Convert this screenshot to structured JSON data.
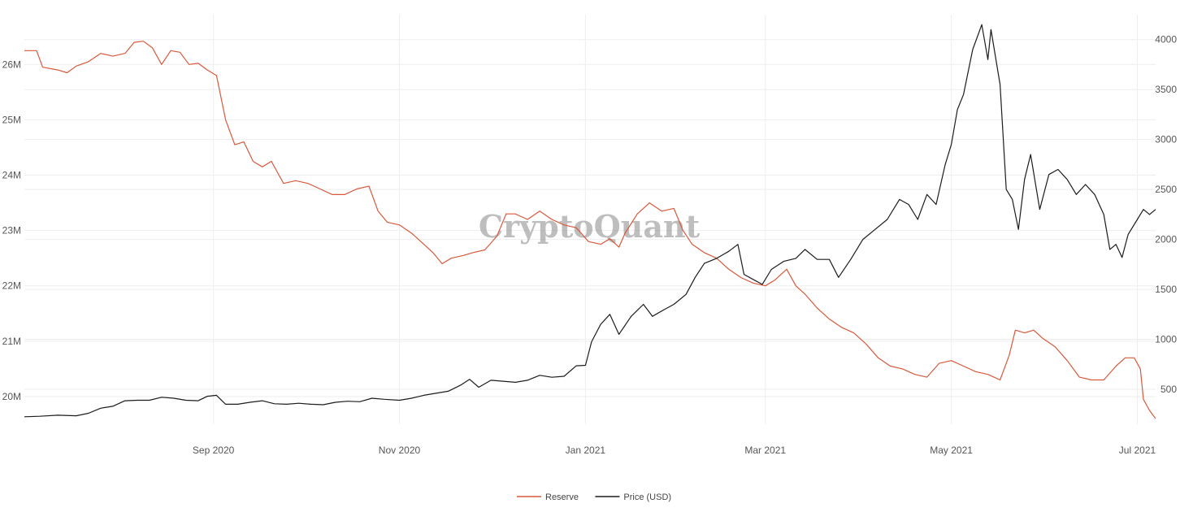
{
  "watermark": "CryptoQuant",
  "colors": {
    "reserve": "#d8593c",
    "price": "#1c1c1c",
    "grid": "#eeeeee",
    "text": "#555555"
  },
  "chart_data": {
    "type": "line",
    "x_range": [
      "2020-07-01",
      "2021-07-07"
    ],
    "x_ticks": [
      {
        "date": "2020-09-01",
        "label": "Sep 2020"
      },
      {
        "date": "2020-11-01",
        "label": "Nov 2020"
      },
      {
        "date": "2021-01-01",
        "label": "Jan 2021"
      },
      {
        "date": "2021-03-01",
        "label": "Mar 2021"
      },
      {
        "date": "2021-05-01",
        "label": "May 2021"
      },
      {
        "date": "2021-07-01",
        "label": "Jul 2021"
      }
    ],
    "y_left": {
      "range": [
        19500000,
        26900000
      ],
      "ticks": [
        {
          "value": 20000000,
          "label": "20M"
        },
        {
          "value": 21000000,
          "label": "21M"
        },
        {
          "value": 22000000,
          "label": "22M"
        },
        {
          "value": 23000000,
          "label": "23M"
        },
        {
          "value": 24000000,
          "label": "24M"
        },
        {
          "value": 25000000,
          "label": "25M"
        },
        {
          "value": 26000000,
          "label": "26M"
        }
      ]
    },
    "y_right": {
      "range": [
        150,
        4250
      ],
      "ticks": [
        {
          "value": 500,
          "label": "500"
        },
        {
          "value": 1000,
          "label": "1000"
        },
        {
          "value": 1500,
          "label": "1500"
        },
        {
          "value": 2000,
          "label": "2000"
        },
        {
          "value": 2500,
          "label": "2500"
        },
        {
          "value": 3000,
          "label": "3000"
        },
        {
          "value": 3500,
          "label": "3500"
        },
        {
          "value": 4000,
          "label": "4000"
        }
      ]
    },
    "legend_position": "bottom-center",
    "series": [
      {
        "name": "Reserve",
        "axis": "left",
        "points": [
          [
            "2020-07-01",
            26.25
          ],
          [
            "2020-07-05",
            26.25
          ],
          [
            "2020-07-07",
            25.95
          ],
          [
            "2020-07-12",
            25.9
          ],
          [
            "2020-07-15",
            25.85
          ],
          [
            "2020-07-18",
            25.97
          ],
          [
            "2020-07-22",
            26.05
          ],
          [
            "2020-07-26",
            26.2
          ],
          [
            "2020-07-30",
            26.15
          ],
          [
            "2020-08-03",
            26.2
          ],
          [
            "2020-08-06",
            26.4
          ],
          [
            "2020-08-09",
            26.42
          ],
          [
            "2020-08-12",
            26.3
          ],
          [
            "2020-08-15",
            26.0
          ],
          [
            "2020-08-18",
            26.25
          ],
          [
            "2020-08-21",
            26.22
          ],
          [
            "2020-08-24",
            26.0
          ],
          [
            "2020-08-27",
            26.02
          ],
          [
            "2020-08-30",
            25.9
          ],
          [
            "2020-09-02",
            25.8
          ],
          [
            "2020-09-05",
            25.0
          ],
          [
            "2020-09-08",
            24.55
          ],
          [
            "2020-09-11",
            24.6
          ],
          [
            "2020-09-14",
            24.25
          ],
          [
            "2020-09-17",
            24.15
          ],
          [
            "2020-09-20",
            24.25
          ],
          [
            "2020-09-24",
            23.85
          ],
          [
            "2020-09-28",
            23.9
          ],
          [
            "2020-10-02",
            23.85
          ],
          [
            "2020-10-06",
            23.75
          ],
          [
            "2020-10-10",
            23.65
          ],
          [
            "2020-10-14",
            23.65
          ],
          [
            "2020-10-18",
            23.75
          ],
          [
            "2020-10-22",
            23.8
          ],
          [
            "2020-10-25",
            23.35
          ],
          [
            "2020-10-28",
            23.15
          ],
          [
            "2020-11-01",
            23.1
          ],
          [
            "2020-11-05",
            22.95
          ],
          [
            "2020-11-08",
            22.8
          ],
          [
            "2020-11-12",
            22.6
          ],
          [
            "2020-11-15",
            22.4
          ],
          [
            "2020-11-18",
            22.5
          ],
          [
            "2020-11-22",
            22.55
          ],
          [
            "2020-11-25",
            22.6
          ],
          [
            "2020-11-29",
            22.65
          ],
          [
            "2020-12-03",
            22.9
          ],
          [
            "2020-12-06",
            23.3
          ],
          [
            "2020-12-09",
            23.3
          ],
          [
            "2020-12-13",
            23.2
          ],
          [
            "2020-12-17",
            23.35
          ],
          [
            "2020-12-21",
            23.2
          ],
          [
            "2020-12-25",
            23.1
          ],
          [
            "2020-12-29",
            23.05
          ],
          [
            "2021-01-02",
            22.8
          ],
          [
            "2021-01-06",
            22.75
          ],
          [
            "2021-01-09",
            22.85
          ],
          [
            "2021-01-12",
            22.7
          ],
          [
            "2021-01-14",
            22.95
          ],
          [
            "2021-01-18",
            23.3
          ],
          [
            "2021-01-22",
            23.5
          ],
          [
            "2021-01-26",
            23.35
          ],
          [
            "2021-01-30",
            23.4
          ],
          [
            "2021-02-02",
            23.0
          ],
          [
            "2021-02-05",
            22.75
          ],
          [
            "2021-02-09",
            22.6
          ],
          [
            "2021-02-13",
            22.5
          ],
          [
            "2021-02-17",
            22.3
          ],
          [
            "2021-02-21",
            22.15
          ],
          [
            "2021-02-25",
            22.05
          ],
          [
            "2021-03-01",
            22.0
          ],
          [
            "2021-03-04",
            22.1
          ],
          [
            "2021-03-08",
            22.3
          ],
          [
            "2021-03-11",
            22.0
          ],
          [
            "2021-03-14",
            21.85
          ],
          [
            "2021-03-18",
            21.6
          ],
          [
            "2021-03-22",
            21.4
          ],
          [
            "2021-03-26",
            21.25
          ],
          [
            "2021-03-30",
            21.15
          ],
          [
            "2021-04-03",
            20.95
          ],
          [
            "2021-04-07",
            20.7
          ],
          [
            "2021-04-11",
            20.55
          ],
          [
            "2021-04-15",
            20.5
          ],
          [
            "2021-04-19",
            20.4
          ],
          [
            "2021-04-23",
            20.35
          ],
          [
            "2021-04-27",
            20.6
          ],
          [
            "2021-05-01",
            20.65
          ],
          [
            "2021-05-05",
            20.55
          ],
          [
            "2021-05-09",
            20.45
          ],
          [
            "2021-05-13",
            20.4
          ],
          [
            "2021-05-15",
            20.35
          ],
          [
            "2021-05-17",
            20.3
          ],
          [
            "2021-05-20",
            20.75
          ],
          [
            "2021-05-22",
            21.2
          ],
          [
            "2021-05-25",
            21.15
          ],
          [
            "2021-05-28",
            21.2
          ],
          [
            "2021-05-31",
            21.05
          ],
          [
            "2021-06-04",
            20.9
          ],
          [
            "2021-06-08",
            20.65
          ],
          [
            "2021-06-12",
            20.35
          ],
          [
            "2021-06-16",
            20.3
          ],
          [
            "2021-06-20",
            20.3
          ],
          [
            "2021-06-24",
            20.55
          ],
          [
            "2021-06-27",
            20.7
          ],
          [
            "2021-06-30",
            20.7
          ],
          [
            "2021-07-02",
            20.5
          ],
          [
            "2021-07-03",
            19.95
          ],
          [
            "2021-07-05",
            19.75
          ],
          [
            "2021-07-07",
            19.6
          ]
        ]
      },
      {
        "name": "Price (USD)",
        "axis": "right",
        "points": [
          [
            "2020-07-01",
            225
          ],
          [
            "2020-07-06",
            230
          ],
          [
            "2020-07-12",
            240
          ],
          [
            "2020-07-18",
            235
          ],
          [
            "2020-07-22",
            260
          ],
          [
            "2020-07-26",
            310
          ],
          [
            "2020-07-30",
            330
          ],
          [
            "2020-08-03",
            385
          ],
          [
            "2020-08-07",
            390
          ],
          [
            "2020-08-11",
            390
          ],
          [
            "2020-08-15",
            420
          ],
          [
            "2020-08-19",
            410
          ],
          [
            "2020-08-23",
            390
          ],
          [
            "2020-08-27",
            385
          ],
          [
            "2020-08-30",
            430
          ],
          [
            "2020-09-02",
            440
          ],
          [
            "2020-09-05",
            350
          ],
          [
            "2020-09-09",
            350
          ],
          [
            "2020-09-13",
            370
          ],
          [
            "2020-09-17",
            385
          ],
          [
            "2020-09-21",
            355
          ],
          [
            "2020-09-25",
            350
          ],
          [
            "2020-09-29",
            360
          ],
          [
            "2020-10-03",
            350
          ],
          [
            "2020-10-07",
            345
          ],
          [
            "2020-10-11",
            370
          ],
          [
            "2020-10-15",
            380
          ],
          [
            "2020-10-19",
            375
          ],
          [
            "2020-10-23",
            410
          ],
          [
            "2020-10-27",
            400
          ],
          [
            "2020-11-01",
            390
          ],
          [
            "2020-11-05",
            410
          ],
          [
            "2020-11-09",
            440
          ],
          [
            "2020-11-13",
            460
          ],
          [
            "2020-11-17",
            480
          ],
          [
            "2020-11-21",
            540
          ],
          [
            "2020-11-24",
            600
          ],
          [
            "2020-11-27",
            520
          ],
          [
            "2020-12-01",
            590
          ],
          [
            "2020-12-05",
            580
          ],
          [
            "2020-12-09",
            570
          ],
          [
            "2020-12-13",
            590
          ],
          [
            "2020-12-17",
            640
          ],
          [
            "2020-12-21",
            620
          ],
          [
            "2020-12-25",
            630
          ],
          [
            "2020-12-29",
            735
          ],
          [
            "2021-01-01",
            740
          ],
          [
            "2021-01-03",
            975
          ],
          [
            "2021-01-06",
            1150
          ],
          [
            "2021-01-09",
            1250
          ],
          [
            "2021-01-12",
            1050
          ],
          [
            "2021-01-16",
            1230
          ],
          [
            "2021-01-20",
            1350
          ],
          [
            "2021-01-23",
            1230
          ],
          [
            "2021-01-27",
            1300
          ],
          [
            "2021-01-30",
            1350
          ],
          [
            "2021-02-03",
            1450
          ],
          [
            "2021-02-06",
            1620
          ],
          [
            "2021-02-09",
            1760
          ],
          [
            "2021-02-13",
            1810
          ],
          [
            "2021-02-17",
            1880
          ],
          [
            "2021-02-20",
            1950
          ],
          [
            "2021-02-22",
            1650
          ],
          [
            "2021-02-25",
            1600
          ],
          [
            "2021-02-28",
            1550
          ],
          [
            "2021-03-03",
            1700
          ],
          [
            "2021-03-07",
            1780
          ],
          [
            "2021-03-11",
            1810
          ],
          [
            "2021-03-14",
            1900
          ],
          [
            "2021-03-18",
            1800
          ],
          [
            "2021-03-22",
            1800
          ],
          [
            "2021-03-25",
            1620
          ],
          [
            "2021-03-29",
            1800
          ],
          [
            "2021-04-02",
            2000
          ],
          [
            "2021-04-06",
            2100
          ],
          [
            "2021-04-10",
            2200
          ],
          [
            "2021-04-14",
            2400
          ],
          [
            "2021-04-17",
            2350
          ],
          [
            "2021-04-20",
            2200
          ],
          [
            "2021-04-23",
            2450
          ],
          [
            "2021-04-26",
            2350
          ],
          [
            "2021-04-29",
            2750
          ],
          [
            "2021-05-01",
            2950
          ],
          [
            "2021-05-03",
            3300
          ],
          [
            "2021-05-05",
            3450
          ],
          [
            "2021-05-08",
            3900
          ],
          [
            "2021-05-11",
            4150
          ],
          [
            "2021-05-13",
            3800
          ],
          [
            "2021-05-14",
            4100
          ],
          [
            "2021-05-17",
            3550
          ],
          [
            "2021-05-19",
            2500
          ],
          [
            "2021-05-21",
            2400
          ],
          [
            "2021-05-23",
            2100
          ],
          [
            "2021-05-25",
            2600
          ],
          [
            "2021-05-27",
            2850
          ],
          [
            "2021-05-30",
            2300
          ],
          [
            "2021-06-02",
            2650
          ],
          [
            "2021-06-05",
            2700
          ],
          [
            "2021-06-08",
            2600
          ],
          [
            "2021-06-11",
            2450
          ],
          [
            "2021-06-14",
            2550
          ],
          [
            "2021-06-17",
            2450
          ],
          [
            "2021-06-20",
            2250
          ],
          [
            "2021-06-22",
            1900
          ],
          [
            "2021-06-24",
            1950
          ],
          [
            "2021-06-26",
            1820
          ],
          [
            "2021-06-28",
            2050
          ],
          [
            "2021-07-01",
            2200
          ],
          [
            "2021-07-03",
            2300
          ],
          [
            "2021-07-05",
            2250
          ],
          [
            "2021-07-07",
            2300
          ]
        ]
      }
    ]
  }
}
